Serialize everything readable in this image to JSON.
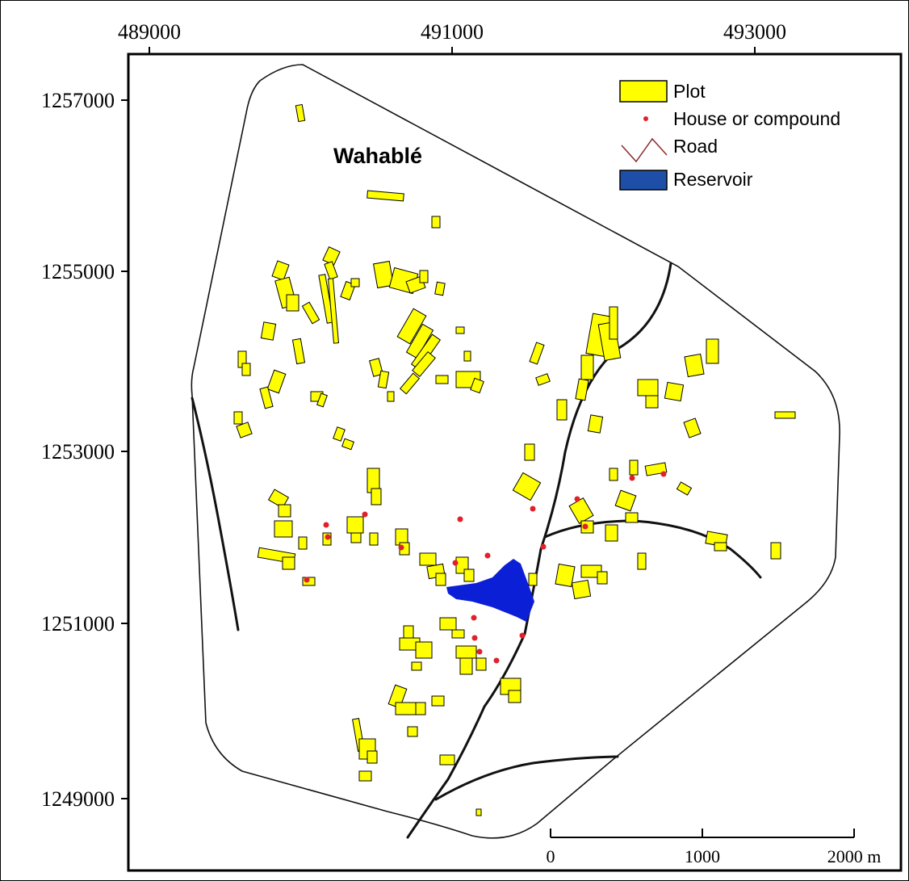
{
  "map": {
    "place_label": "Wahablé",
    "x_ticks": [
      "489000",
      "491000",
      "493000"
    ],
    "y_ticks": [
      "1257000",
      "1255000",
      "1253000",
      "1251000",
      "1249000"
    ]
  },
  "legend": {
    "items": [
      {
        "label": "Plot",
        "symbol": "plot"
      },
      {
        "label": "House or compound",
        "symbol": "house"
      },
      {
        "label": "Road",
        "symbol": "road"
      },
      {
        "label": "Reservoir",
        "symbol": "reservoir"
      }
    ]
  },
  "scale_bar": {
    "labels": [
      "0",
      "1000",
      "2000 m"
    ]
  },
  "colors": {
    "plot": "#ffff00",
    "reservoir": "#0b1fd6",
    "house": "#e0202a",
    "road": "#111111",
    "legend_road": "#8b2b2b",
    "legend_reservoir": "#1d4fa8"
  }
}
